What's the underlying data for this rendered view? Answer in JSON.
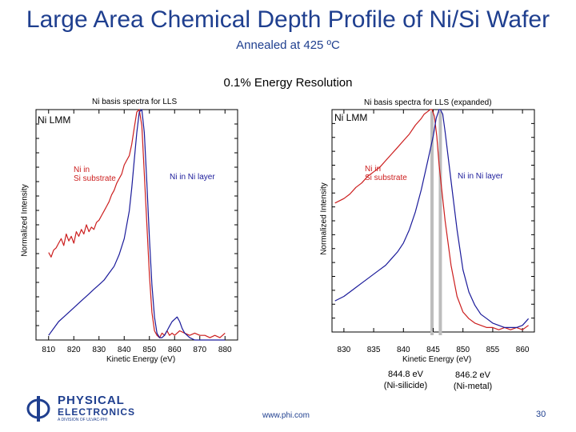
{
  "title": "Large Area Chemical Depth Profile of Ni/Si Wafer",
  "subtitle": "Annealed at 425 ºC",
  "resolution": "0.1% Energy Resolution",
  "logo": {
    "line1": "PHYSICAL",
    "line2": "ELECTRONICS",
    "line3": "A DIVISION OF ULVAC-PHI"
  },
  "footer": {
    "url": "www.phi.com",
    "page": "30"
  },
  "colors": {
    "title": "#1f3f8f",
    "ni_in_si_substrate": "#cc1e1e",
    "ni_in_ni_layer": "#1a1a9a",
    "marker": "#bdbdbd"
  },
  "chart_data": [
    {
      "type": "line",
      "title": "Ni basis spectra for LLS",
      "label": "Ni LMM",
      "xlabel": "Kinetic Energy (eV)",
      "ylabel": "Normalized Intensity",
      "xlim": [
        805,
        885
      ],
      "ylim": [
        0,
        1
      ],
      "xticks": [
        "810",
        "820",
        "830",
        "840",
        "850",
        "860",
        "870",
        "880"
      ],
      "annotations": {
        "substrate": [
          "Ni in",
          "Si substrate"
        ],
        "layer": "Ni in Ni layer"
      },
      "series": [
        {
          "name": "Ni in Si substrate",
          "color": "#cc1e1e",
          "x": [
            810,
            811,
            812,
            813,
            814,
            815,
            816,
            817,
            818,
            819,
            820,
            821,
            822,
            823,
            824,
            825,
            826,
            827,
            828,
            829,
            830,
            831,
            832,
            833,
            834,
            835,
            836,
            837,
            838,
            839,
            840,
            841,
            842,
            843,
            844,
            845,
            846,
            847,
            848,
            849,
            850,
            851,
            852,
            853,
            854,
            855,
            856,
            857,
            858,
            859,
            860,
            862,
            864,
            866,
            868,
            870,
            872,
            874,
            876,
            878,
            880
          ],
          "y": [
            0.38,
            0.36,
            0.39,
            0.4,
            0.42,
            0.44,
            0.41,
            0.46,
            0.43,
            0.45,
            0.42,
            0.47,
            0.45,
            0.48,
            0.46,
            0.5,
            0.47,
            0.49,
            0.48,
            0.51,
            0.52,
            0.54,
            0.56,
            0.58,
            0.6,
            0.63,
            0.65,
            0.68,
            0.7,
            0.72,
            0.76,
            0.78,
            0.8,
            0.85,
            0.92,
            0.99,
            1.0,
            0.93,
            0.72,
            0.5,
            0.28,
            0.12,
            0.04,
            0.02,
            0.01,
            0.03,
            0.02,
            0.04,
            0.02,
            0.03,
            0.02,
            0.04,
            0.03,
            0.02,
            0.03,
            0.02,
            0.02,
            0.01,
            0.02,
            0.01,
            0.03
          ]
        },
        {
          "name": "Ni in Ni layer",
          "color": "#1a1a9a",
          "x": [
            810,
            812,
            814,
            816,
            818,
            820,
            822,
            824,
            826,
            828,
            830,
            832,
            834,
            836,
            838,
            840,
            842,
            843,
            844,
            845,
            846,
            847,
            848,
            849,
            850,
            851,
            852,
            853,
            854,
            855,
            856,
            857,
            858,
            859,
            860,
            861,
            862,
            863,
            864,
            866,
            868,
            870,
            872,
            874,
            876,
            878,
            880
          ],
          "y": [
            0.02,
            0.05,
            0.08,
            0.1,
            0.12,
            0.14,
            0.16,
            0.18,
            0.2,
            0.22,
            0.24,
            0.26,
            0.29,
            0.32,
            0.37,
            0.44,
            0.56,
            0.66,
            0.78,
            0.9,
            0.99,
            1.0,
            0.9,
            0.68,
            0.44,
            0.24,
            0.1,
            0.03,
            0.01,
            0.01,
            0.02,
            0.04,
            0.06,
            0.08,
            0.09,
            0.1,
            0.08,
            0.05,
            0.03,
            0.01,
            0.0,
            0.0,
            0.0,
            0.0,
            0.0,
            0.0,
            0.0
          ]
        }
      ]
    },
    {
      "type": "line",
      "title": "Ni basis spectra for LLS (expanded)",
      "label": "Ni LMM",
      "xlabel": "Kinetic Energy (eV)",
      "ylabel": "Normalized Intensity",
      "xlim": [
        828,
        862
      ],
      "ylim": [
        0,
        1
      ],
      "xticks": [
        "830",
        "835",
        "840",
        "845",
        "850",
        "855",
        "860"
      ],
      "annotations": {
        "substrate": [
          "Ni in",
          "Si substrate"
        ],
        "layer": "Ni in Ni layer"
      },
      "markers": [
        {
          "x": 844.8,
          "label": "844.8 eV",
          "sublabel": "(Ni-silicide)"
        },
        {
          "x": 846.2,
          "label": "846.2 eV",
          "sublabel": "(Ni-metal)"
        }
      ],
      "series": [
        {
          "name": "Ni in Si substrate",
          "color": "#cc1e1e",
          "x": [
            828.5,
            830,
            831,
            832,
            833,
            834,
            835,
            836,
            837,
            838,
            839,
            840,
            841,
            842,
            843,
            843.5,
            844,
            844.5,
            844.8,
            845.2,
            845.6,
            846,
            847,
            848,
            849,
            850,
            851,
            852,
            853,
            854,
            855,
            856,
            857,
            858,
            859,
            860,
            861
          ],
          "y": [
            0.58,
            0.6,
            0.62,
            0.65,
            0.67,
            0.7,
            0.72,
            0.74,
            0.77,
            0.8,
            0.83,
            0.86,
            0.89,
            0.93,
            0.96,
            0.98,
            0.99,
            1.0,
            1.0,
            0.97,
            0.88,
            0.75,
            0.5,
            0.3,
            0.16,
            0.09,
            0.06,
            0.04,
            0.03,
            0.02,
            0.02,
            0.01,
            0.02,
            0.01,
            0.02,
            0.01,
            0.03
          ]
        },
        {
          "name": "Ni in Ni layer",
          "color": "#1a1a9a",
          "x": [
            828.5,
            830,
            831,
            832,
            833,
            834,
            835,
            836,
            837,
            838,
            839,
            840,
            841,
            842,
            843,
            844,
            845,
            845.5,
            846,
            846.2,
            846.6,
            847,
            848,
            849,
            850,
            851,
            852,
            853,
            854,
            855,
            856,
            857,
            858,
            859,
            860,
            861
          ],
          "y": [
            0.14,
            0.16,
            0.18,
            0.2,
            0.22,
            0.24,
            0.26,
            0.28,
            0.3,
            0.33,
            0.36,
            0.4,
            0.46,
            0.54,
            0.64,
            0.76,
            0.88,
            0.96,
            1.0,
            1.0,
            0.98,
            0.9,
            0.68,
            0.46,
            0.28,
            0.18,
            0.12,
            0.08,
            0.06,
            0.04,
            0.03,
            0.02,
            0.02,
            0.02,
            0.03,
            0.06
          ]
        }
      ]
    }
  ]
}
